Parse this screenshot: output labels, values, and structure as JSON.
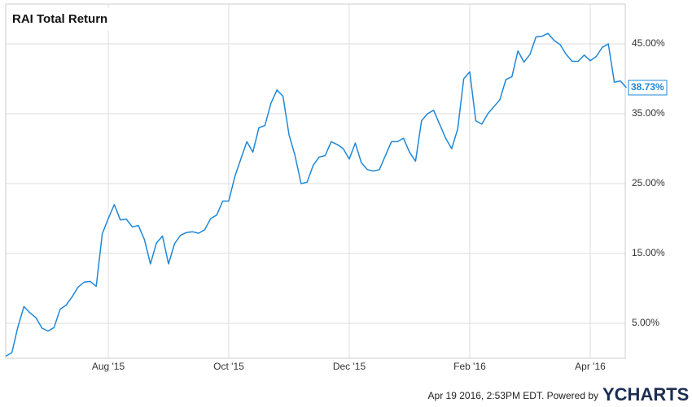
{
  "chart_data": {
    "type": "line",
    "title": "RAI Total Return",
    "categories": [
      null,
      null,
      null,
      null,
      null,
      null,
      null,
      null,
      null,
      null,
      null,
      null,
      null,
      null,
      null,
      null,
      null,
      "Aug '15",
      null,
      null,
      null,
      null,
      null,
      null,
      null,
      null,
      null,
      null,
      null,
      null,
      null,
      null,
      null,
      null,
      null,
      null,
      null,
      "Oct '15",
      null,
      null,
      null,
      null,
      null,
      null,
      null,
      null,
      null,
      null,
      null,
      null,
      null,
      null,
      null,
      null,
      null,
      null,
      null,
      "Dec '15",
      null,
      null,
      null,
      null,
      null,
      null,
      null,
      null,
      null,
      null,
      null,
      null,
      null,
      null,
      null,
      null,
      null,
      null,
      null,
      "Feb '16",
      null,
      null,
      null,
      null,
      null,
      null,
      null,
      null,
      null,
      null,
      null,
      null,
      null,
      null,
      null,
      null,
      null,
      null,
      null,
      "Apr '16",
      null,
      null,
      null,
      null,
      null,
      null
    ],
    "values": [
      0.3,
      0.8,
      4.5,
      7.4,
      6.5,
      5.8,
      4.3,
      3.9,
      4.4,
      7.0,
      7.6,
      8.8,
      10.2,
      10.9,
      11.0,
      10.3,
      17.8,
      20.0,
      22.0,
      19.8,
      19.9,
      18.8,
      19.0,
      17.0,
      13.5,
      16.5,
      17.5,
      13.5,
      16.4,
      17.6,
      18.0,
      18.1,
      17.9,
      18.4,
      20.0,
      20.5,
      22.5,
      22.5,
      26.0,
      28.5,
      31.0,
      29.5,
      33.0,
      33.3,
      36.5,
      38.4,
      37.5,
      32.0,
      29.0,
      25.0,
      25.2,
      27.6,
      28.8,
      29.0,
      31.0,
      30.6,
      30.0,
      28.5,
      30.8,
      28.0,
      27.0,
      26.8,
      27.0,
      29.0,
      31.0,
      31.0,
      31.5,
      29.5,
      28.2,
      34.0,
      35.0,
      35.5,
      33.5,
      31.5,
      30.0,
      32.8,
      40.0,
      41.0,
      34.0,
      33.5,
      35.0,
      36.0,
      37.0,
      39.9,
      40.3,
      44.0,
      42.4,
      43.5,
      46.0,
      46.1,
      46.5,
      45.5,
      44.9,
      43.5,
      42.5,
      42.5,
      43.4,
      42.6,
      43.2,
      44.5,
      45.0,
      39.5,
      39.7,
      38.73
    ],
    "value_labels": [
      null,
      null,
      null,
      null,
      null,
      null,
      null,
      null,
      null,
      null,
      null,
      null,
      null,
      null,
      null,
      null,
      null,
      null,
      null,
      null,
      null,
      null,
      null,
      null,
      null,
      null,
      null,
      null,
      null,
      null,
      null,
      null,
      null,
      null,
      null,
      null,
      null,
      null,
      null,
      null,
      null,
      null,
      null,
      null,
      null,
      null,
      null,
      null,
      null,
      null,
      null,
      null,
      null,
      null,
      null,
      null,
      null,
      null,
      null,
      null,
      null,
      null,
      null,
      null,
      null,
      null,
      null,
      null,
      null,
      null,
      null,
      null,
      null,
      null,
      null,
      null,
      null,
      null,
      null,
      null,
      null,
      null,
      null,
      null,
      null,
      null,
      null,
      null,
      null,
      null,
      null,
      null,
      null,
      null,
      null,
      null,
      null,
      null,
      null,
      null,
      null,
      null,
      null,
      "38.73%"
    ],
    "color": "#1f88d8",
    "ylim": [
      0,
      50.7
    ],
    "yticks": [
      {
        "value": 5,
        "label": "5.00%"
      },
      {
        "value": 15,
        "label": "15.00%"
      },
      {
        "value": 25,
        "label": "25.00%"
      },
      {
        "value": 35,
        "label": "35.00%"
      },
      {
        "value": 45,
        "label": "45.00%"
      }
    ],
    "grid": true,
    "footer": "Apr 19 2016, 2:53PM EDT.  Powered by",
    "brand": "YCHARTS"
  }
}
